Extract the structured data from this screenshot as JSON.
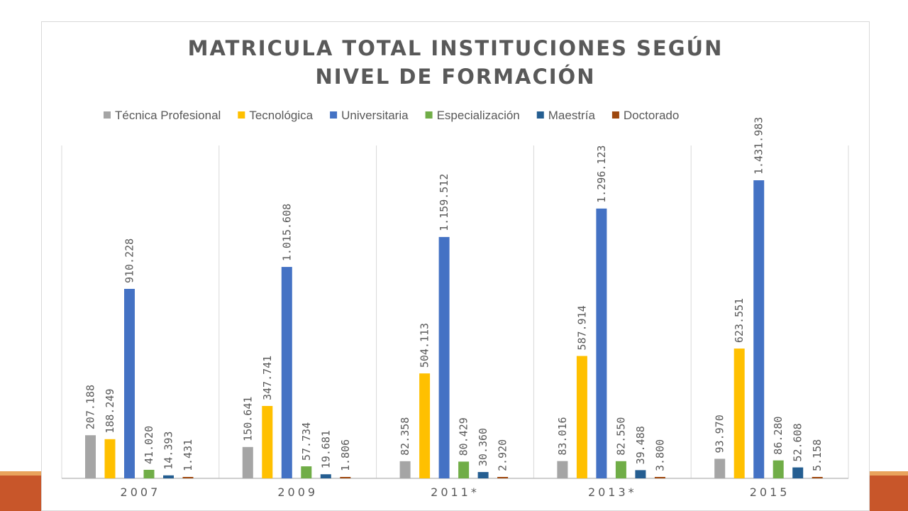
{
  "chart_data": {
    "type": "bar",
    "title_lines": [
      "MATRICULA TOTAL INSTITUCIONES SEGÚN",
      "NIVEL DE FORMACIÓN"
    ],
    "categories": [
      "2007",
      "2009",
      "2011*",
      "2013*",
      "2015"
    ],
    "series": [
      {
        "name": "Técnica Profesional",
        "color": "#a5a5a5",
        "values": [
          207188,
          150641,
          82358,
          83016,
          93970
        ],
        "labels": [
          "207.188",
          "150.641",
          "82.358",
          "83.016",
          "93.970"
        ]
      },
      {
        "name": "Tecnológica",
        "color": "#ffc000",
        "values": [
          188249,
          347741,
          504113,
          587914,
          623551
        ],
        "labels": [
          "188.249",
          "347.741",
          "504.113",
          "587.914",
          "623.551"
        ]
      },
      {
        "name": "Universitaria",
        "color": "#4472c4",
        "values": [
          910228,
          1015608,
          1159512,
          1296123,
          1431983
        ],
        "labels": [
          "910.228",
          "1.015.608",
          "1.159.512",
          "1.296.123",
          "1.431.983"
        ]
      },
      {
        "name": "Especialización",
        "color": "#70ad47",
        "values": [
          41020,
          57734,
          80429,
          82550,
          86280
        ],
        "labels": [
          "41.020",
          "57.734",
          "80.429",
          "82.550",
          "86.280"
        ]
      },
      {
        "name": "Maestría",
        "color": "#255e91",
        "values": [
          14393,
          19681,
          30360,
          39488,
          52608
        ],
        "labels": [
          "14.393",
          "19.681",
          "30.360",
          "39.488",
          "52.608"
        ]
      },
      {
        "name": "Doctorado",
        "color": "#9e480e",
        "values": [
          1431,
          1806,
          2920,
          3800,
          5158
        ],
        "labels": [
          "1.431",
          "1.806",
          "2.920",
          "3.800",
          "5.158"
        ]
      }
    ],
    "ylim": [
      0,
      1450000
    ],
    "grid": false,
    "legend_position": "top"
  }
}
